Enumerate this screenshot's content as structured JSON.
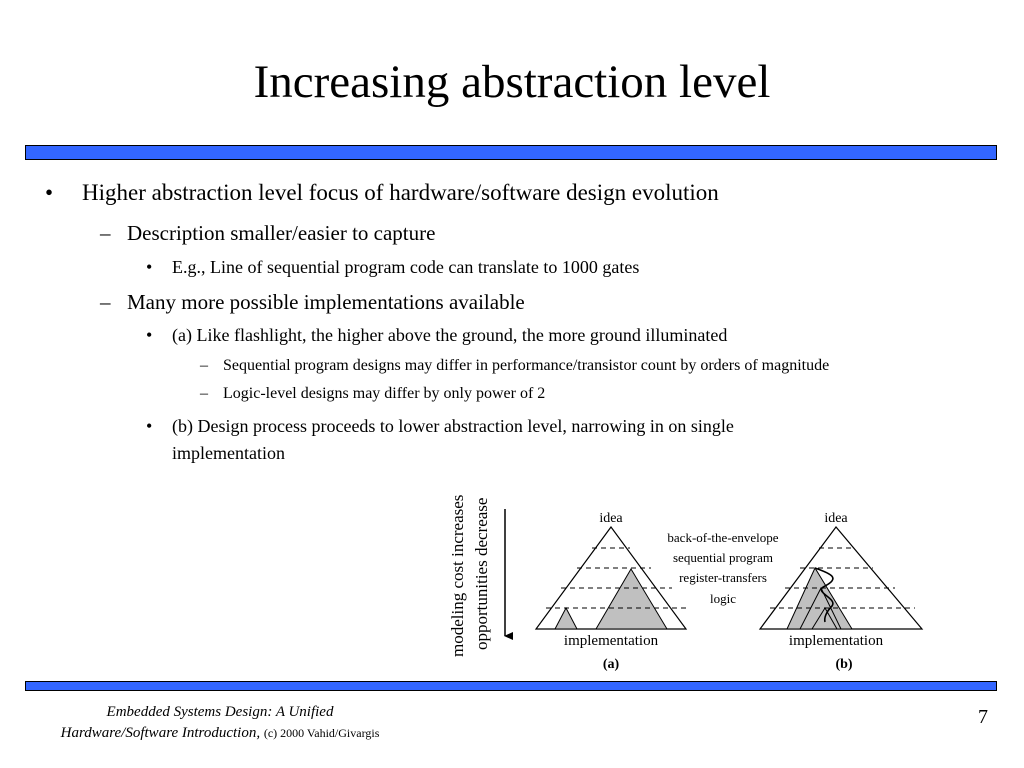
{
  "slide": {
    "title": "Increasing abstraction level",
    "bullets": {
      "b1": "Higher abstraction level focus of hardware/software design evolution",
      "b1_1": "Description smaller/easier to capture",
      "b1_1_1": "E.g., Line of sequential program code can translate to 1000 gates",
      "b1_2": "Many more possible implementations available",
      "b1_2_1": "(a) Like flashlight, the higher above the ground, the more ground illuminated",
      "b1_2_1_1": "Sequential program designs may differ in performance/transistor count by orders of magnitude",
      "b1_2_1_2": "Logic-level designs may differ by only power of 2",
      "b1_2_2_line1": "(b) Design process proceeds to lower abstraction level, narrowing in on single",
      "b1_2_2_line2": "implementation"
    },
    "markers": {
      "bullet": "•",
      "dash": "–"
    },
    "colors": {
      "rule_bar": "#3366ff",
      "shaded_region": "#c0c0c0"
    }
  },
  "diagram": {
    "axis_label_1": "modeling cost increases",
    "axis_label_2": "opportunities decrease",
    "levels": [
      "back-of-the-envelope",
      "sequential program",
      "register-transfers",
      "logic"
    ],
    "pyramid_a": {
      "top_label": "idea",
      "bottom_label": "implementation",
      "caption": "(a)"
    },
    "pyramid_b": {
      "top_label": "idea",
      "bottom_label": "implementation",
      "caption": "(b)"
    }
  },
  "footer": {
    "book_line1": "Embedded Systems Design: A Unified",
    "book_line2": "Hardware/Software Introduction,",
    "copyright": "(c) 2000 Vahid/Givargis",
    "page_number": "7"
  }
}
